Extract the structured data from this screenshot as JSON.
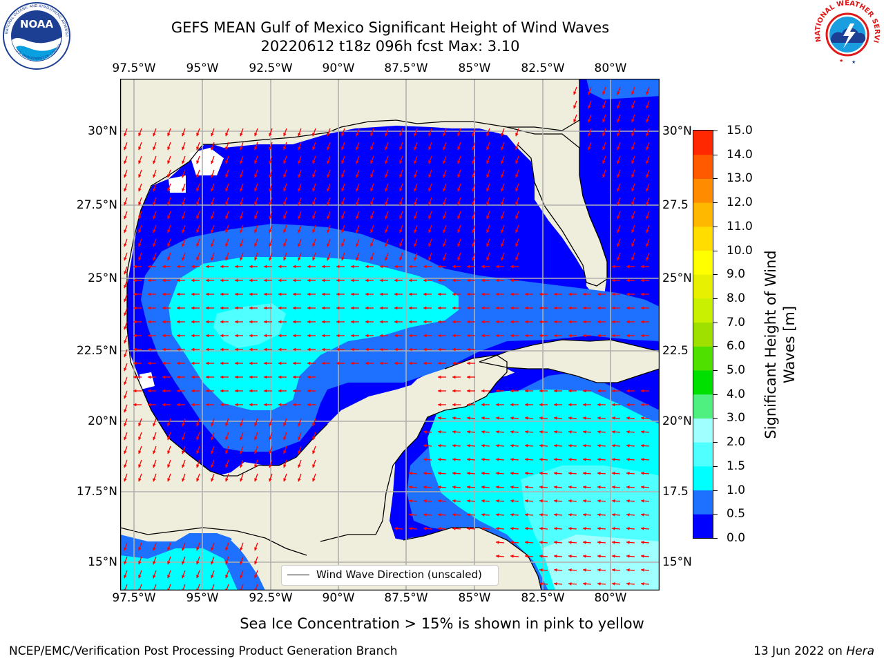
{
  "title": {
    "line1": "GEFS MEAN Gulf of Mexico Significant Height of Wind Waves",
    "line2": "20220612 t18z 096h fcst   Max: 3.10"
  },
  "logos": {
    "left": {
      "icon": "noaa-logo-icon",
      "text": "NOAA",
      "ring_text": "NATIONAL OCEANIC AND ATMOSPHERIC ADMINISTRATION · U.S. DEPARTMENT OF COMMERCE"
    },
    "right": {
      "icon": "nws-logo-icon",
      "ring_text": "NATIONAL WEATHER SERVICE"
    }
  },
  "map": {
    "lon_ticks": [
      "97.5°W",
      "95°W",
      "92.5°W",
      "90°W",
      "87.5°W",
      "85°W",
      "82.5°W",
      "80°W"
    ],
    "lat_ticks": [
      "30°N",
      "27.5°N",
      "25°N",
      "22.5°N",
      "20°N",
      "17.5°N",
      "15°N"
    ],
    "lat_ticks_right": [
      "30°N",
      "27.5",
      "25°N",
      "22.5",
      "20°N",
      "17.5",
      "15°N"
    ],
    "legend_label": "Wind Wave Direction (unscaled)",
    "colors": {
      "land": "#efeddb",
      "arrow": "#ff0000",
      "grid": "#b0b0b0",
      "coast": "#000000"
    }
  },
  "colorbar": {
    "label_line1": "Significant Height of Wind",
    "label_line2": "Waves [m]",
    "ticks": [
      "15.0",
      "14.0",
      "13.0",
      "12.0",
      "11.0",
      "10.0",
      "9.0",
      "8.0",
      "7.0",
      "6.0",
      "5.0",
      "4.0",
      "3.0",
      "2.0",
      "1.5",
      "1.0",
      "0.5",
      "0.0"
    ],
    "colors": [
      "#0000ff",
      "#1e70ff",
      "#00ffff",
      "#50ffff",
      "#a0ffff",
      "#50f080",
      "#00e000",
      "#50e000",
      "#a0e000",
      "#c8f000",
      "#e6f000",
      "#ffff00",
      "#ffdd00",
      "#ffb800",
      "#ff8c00",
      "#ff5a00",
      "#ff2800"
    ]
  },
  "subtitle": "Sea Ice Concentration > 15% is shown in pink to yellow",
  "footer": {
    "left": "NCEP/EMC/Verification Post Processing Product Generation Branch",
    "right_date": "13 Jun 2022 on ",
    "right_host": "Hera"
  }
}
